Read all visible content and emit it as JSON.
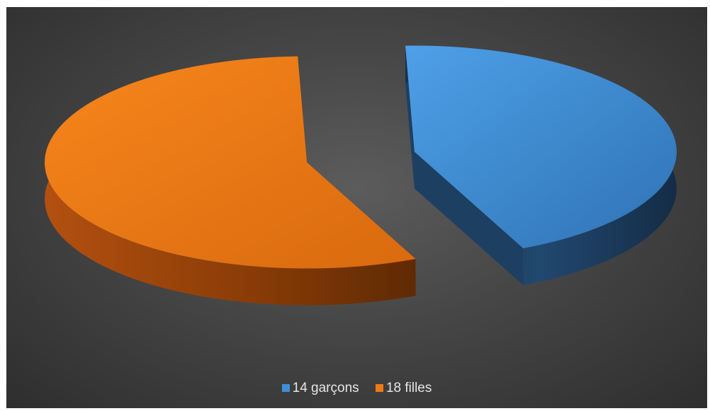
{
  "chart_data": {
    "type": "pie",
    "style": "3d-exploded",
    "categories": [
      "14 garçons",
      "18 filles"
    ],
    "values": [
      14,
      18
    ],
    "colors": [
      "#3f8fd6",
      "#f07a17"
    ],
    "side_colors": [
      "#1d3f62",
      "#9a4208"
    ],
    "legend_position": "bottom",
    "title": ""
  }
}
